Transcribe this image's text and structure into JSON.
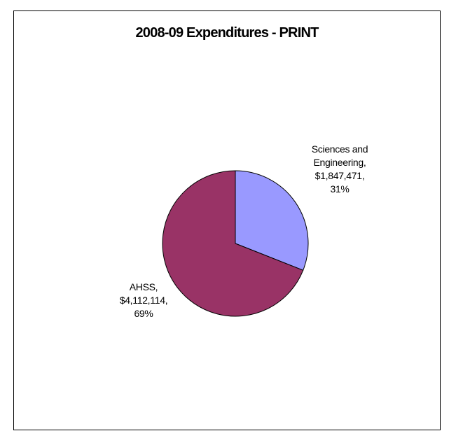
{
  "chart_data": {
    "type": "pie",
    "title": "2008-09 Expenditures - PRINT",
    "slices": [
      {
        "name": "Sciences and Engineering",
        "value": 1847471,
        "percent": 31,
        "label_lines": [
          "Sciences and",
          "Engineering,",
          "$1,847,471,",
          "31%"
        ],
        "color": "#9999ff"
      },
      {
        "name": "AHSS",
        "value": 4112114,
        "percent": 69,
        "label_lines": [
          "AHSS,",
          "$4,112,114,",
          "69%"
        ],
        "color": "#993366"
      }
    ],
    "start_angle": "12 o'clock",
    "direction": "clockwise",
    "legend": "none"
  }
}
